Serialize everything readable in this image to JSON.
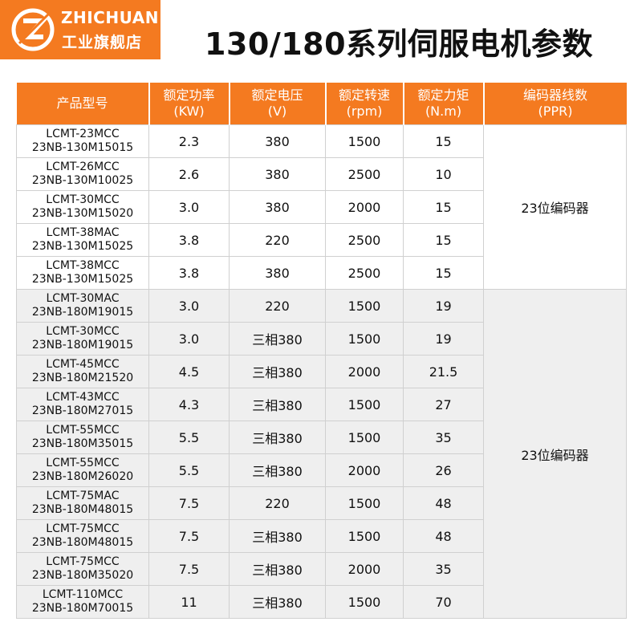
{
  "brand": {
    "name": "ZHICHUAN",
    "subtitle": "工业旗舰店",
    "accent": "#f47a20"
  },
  "title": "130/180系列伺服电机参数",
  "table": {
    "headers": [
      {
        "line1": "产品型号",
        "line2": ""
      },
      {
        "line1": "额定功率",
        "line2": "(KW)"
      },
      {
        "line1": "额定电压",
        "line2": "(V)"
      },
      {
        "line1": "额定转速",
        "line2": "(rpm)"
      },
      {
        "line1": "额定力矩",
        "line2": "(N.m)"
      },
      {
        "line1": "编码器线数",
        "line2": "(PPR)"
      }
    ],
    "encoder_groups": [
      "23位编码器",
      "23位编码器"
    ],
    "rows": [
      {
        "model1": "LCMT-23MCC",
        "model2": "23NB-130M15015",
        "power": "2.3",
        "voltage": "380",
        "speed": "1500",
        "torque": "15"
      },
      {
        "model1": "LCMT-26MCC",
        "model2": "23NB-130M10025",
        "power": "2.6",
        "voltage": "380",
        "speed": "2500",
        "torque": "10"
      },
      {
        "model1": "LCMT-30MCC",
        "model2": "23NB-130M15020",
        "power": "3.0",
        "voltage": "380",
        "speed": "2000",
        "torque": "15"
      },
      {
        "model1": "LCMT-38MAC",
        "model2": "23NB-130M15025",
        "power": "3.8",
        "voltage": "220",
        "speed": "2500",
        "torque": "15"
      },
      {
        "model1": "LCMT-38MCC",
        "model2": "23NB-130M15025",
        "power": "3.8",
        "voltage": "380",
        "speed": "2500",
        "torque": "15"
      },
      {
        "model1": "LCMT-30MAC",
        "model2": "23NB-180M19015",
        "power": "3.0",
        "voltage": "220",
        "speed": "1500",
        "torque": "19"
      },
      {
        "model1": "LCMT-30MCC",
        "model2": "23NB-180M19015",
        "power": "3.0",
        "voltage": "三相380",
        "speed": "1500",
        "torque": "19"
      },
      {
        "model1": "LCMT-45MCC",
        "model2": "23NB-180M21520",
        "power": "4.5",
        "voltage": "三相380",
        "speed": "2000",
        "torque": "21.5"
      },
      {
        "model1": "LCMT-43MCC",
        "model2": "23NB-180M27015",
        "power": "4.3",
        "voltage": "三相380",
        "speed": "1500",
        "torque": "27"
      },
      {
        "model1": "LCMT-55MCC",
        "model2": "23NB-180M35015",
        "power": "5.5",
        "voltage": "三相380",
        "speed": "1500",
        "torque": "35"
      },
      {
        "model1": "LCMT-55MCC",
        "model2": "23NB-180M26020",
        "power": "5.5",
        "voltage": "三相380",
        "speed": "2000",
        "torque": "26"
      },
      {
        "model1": "LCMT-75MAC",
        "model2": "23NB-180M48015",
        "power": "7.5",
        "voltage": "220",
        "speed": "1500",
        "torque": "48"
      },
      {
        "model1": "LCMT-75MCC",
        "model2": "23NB-180M48015",
        "power": "7.5",
        "voltage": "三相380",
        "speed": "1500",
        "torque": "48"
      },
      {
        "model1": "LCMT-75MCC",
        "model2": "23NB-180M35020",
        "power": "7.5",
        "voltage": "三相380",
        "speed": "2000",
        "torque": "35"
      },
      {
        "model1": "LCMT-110MCC",
        "model2": "23NB-180M70015",
        "power": "11",
        "voltage": "三相380",
        "speed": "1500",
        "torque": "70"
      }
    ]
  }
}
